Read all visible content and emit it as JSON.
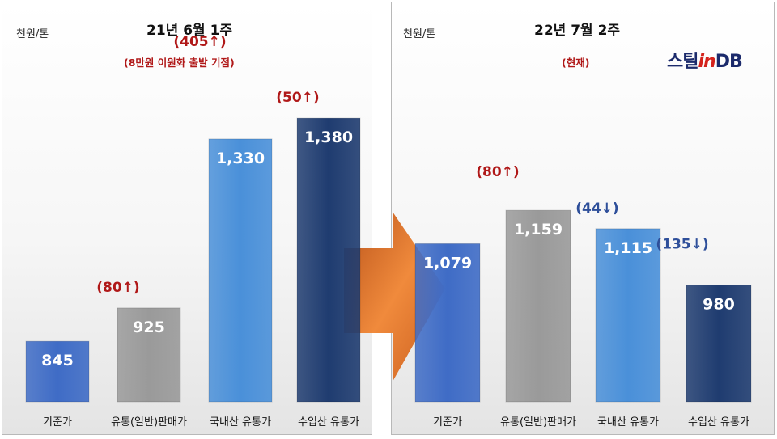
{
  "left_panel": {
    "unit_label": "천원/톤",
    "title": "21년 6월 1주",
    "subtitle": "(8만원 이원화 출발 기점)"
  },
  "right_panel": {
    "unit_label": "천원/톤",
    "title": "22년 7월 2주",
    "subtitle": "(현재)"
  },
  "logo": {
    "part1": "스틸",
    "part2": "in",
    "part3": "DB"
  },
  "colors": {
    "base_price": "#3f6cc6",
    "distribution_general": "#9a9a9a",
    "domestic": "#4a90d9",
    "imported": "#1f3c70",
    "up_annotation": "#b01818",
    "down_annotation": "#2e4f9a",
    "arrow": "#e0782a"
  },
  "chart_data": [
    {
      "type": "bar",
      "title": "21년 6월 1주",
      "subtitle": "(8만원 이원화 출발 기점)",
      "ylabel": "천원/톤",
      "ylim": [
        700,
        1450
      ],
      "categories": [
        "기준가",
        "유통(일반)판매가",
        "국내산 유통가",
        "수입산 유통가"
      ],
      "values": [
        845,
        925,
        1330,
        1380
      ],
      "data_labels": [
        "845",
        "925",
        "1,330",
        "1,380"
      ],
      "annotations": [
        "",
        "(80↑)",
        "(405↑)",
        "(50↑)"
      ]
    },
    {
      "type": "bar",
      "title": "22년 7월 2주",
      "subtitle": "(현재)",
      "ylabel": "천원/톤",
      "ylim": [
        700,
        1450
      ],
      "categories": [
        "기준가",
        "유통(일반)판매가",
        "국내산 유통가",
        "수입산 유통가"
      ],
      "values": [
        1079,
        1159,
        1115,
        980
      ],
      "data_labels": [
        "1,079",
        "1,159",
        "1,115",
        "980"
      ],
      "annotations": [
        "",
        "(80↑)",
        "(44↓)",
        "(135↓)"
      ]
    }
  ]
}
